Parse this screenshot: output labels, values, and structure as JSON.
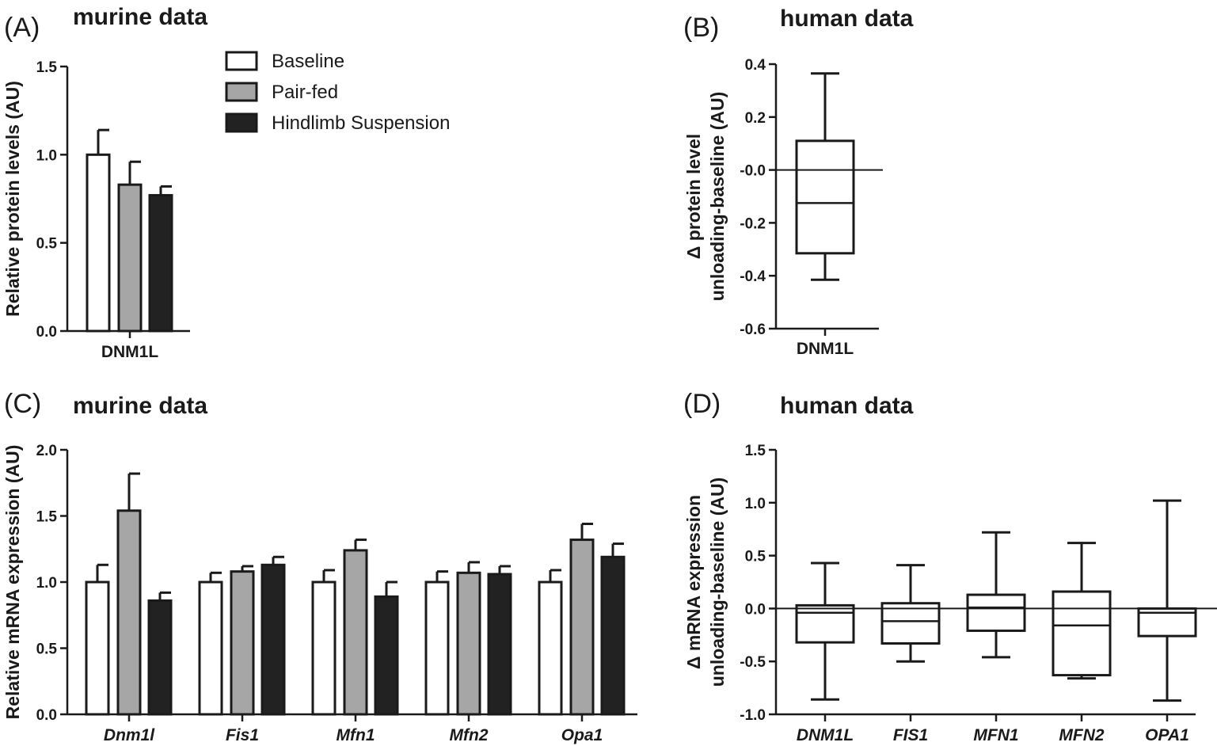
{
  "panels": {
    "A": {
      "letter": "(A)",
      "title": "murine data"
    },
    "B": {
      "letter": "(B)",
      "title": "human data"
    },
    "C": {
      "letter": "(C)",
      "title": "murine data"
    },
    "D": {
      "letter": "(D)",
      "title": "human data"
    }
  },
  "legend": {
    "items": [
      {
        "label": "Baseline",
        "color": "#ffffff"
      },
      {
        "label": "Pair-fed",
        "color": "#a6a6a6"
      },
      {
        "label": "Hindlimb Suspension",
        "color": "#222222"
      }
    ]
  },
  "chart_data": [
    {
      "panel": "A",
      "type": "bar",
      "ylabel": "Relative protein levels (AU)",
      "xlabel": "",
      "ylim": [
        0,
        1.5
      ],
      "yticks": [
        "0.0",
        "0.5",
        "1.0",
        "1.5"
      ],
      "categories": [
        "DNM1L"
      ],
      "category_italic": false,
      "series": [
        {
          "name": "Baseline",
          "values": [
            1.0
          ],
          "errors": [
            0.14
          ],
          "color": "#ffffff"
        },
        {
          "name": "Pair-fed",
          "values": [
            0.83
          ],
          "errors": [
            0.13
          ],
          "color": "#a6a6a6"
        },
        {
          "name": "Hindlimb Suspension",
          "values": [
            0.77
          ],
          "errors": [
            0.05
          ],
          "color": "#222222"
        }
      ],
      "grid": false
    },
    {
      "panel": "B",
      "type": "box",
      "ylabel": "Δ protein level unloading-baseline (AU)",
      "ylabel_lines": [
        "Δ protein level",
        "unloading-baseline (AU)"
      ],
      "xlabel": "",
      "ylim": [
        -0.6,
        0.4
      ],
      "yticks": [
        "-0.6",
        "-0.4",
        "-0.2",
        "-0.0",
        "0.2",
        "0.4"
      ],
      "categories": [
        "DNM1L"
      ],
      "category_italic": false,
      "boxes": [
        {
          "min": -0.415,
          "q1": -0.315,
          "median": -0.125,
          "q3": 0.11,
          "max": 0.365
        }
      ],
      "zero_line": true,
      "grid": false
    },
    {
      "panel": "C",
      "type": "bar",
      "ylabel": "Relative mRNA expression (AU)",
      "xlabel": "",
      "ylim": [
        0,
        2.0
      ],
      "yticks": [
        "0.0",
        "0.5",
        "1.0",
        "1.5",
        "2.0"
      ],
      "categories": [
        "Dnm1l",
        "Fis1",
        "Mfn1",
        "Mfn2",
        "Opa1"
      ],
      "category_italic": true,
      "series": [
        {
          "name": "Baseline",
          "values": [
            1.0,
            1.0,
            1.0,
            1.0,
            1.0
          ],
          "errors": [
            0.13,
            0.07,
            0.09,
            0.08,
            0.09
          ],
          "color": "#ffffff"
        },
        {
          "name": "Pair-fed",
          "values": [
            1.54,
            1.08,
            1.24,
            1.07,
            1.32
          ],
          "errors": [
            0.28,
            0.04,
            0.08,
            0.08,
            0.12
          ],
          "color": "#a6a6a6"
        },
        {
          "name": "Hindlimb Suspension",
          "values": [
            0.86,
            1.13,
            0.89,
            1.06,
            1.19
          ],
          "errors": [
            0.06,
            0.06,
            0.11,
            0.06,
            0.1
          ],
          "color": "#222222"
        }
      ],
      "grid": false
    },
    {
      "panel": "D",
      "type": "box",
      "ylabel": "Δ mRNA expression unloading-baseline (AU)",
      "ylabel_lines": [
        "Δ mRNA expression",
        "unloading-baseline (AU)"
      ],
      "xlabel": "",
      "ylim": [
        -1.0,
        1.5
      ],
      "yticks": [
        "-1.0",
        "-0.5",
        "0.0",
        "0.5",
        "1.0",
        "1.5"
      ],
      "categories": [
        "DNM1L",
        "FIS1",
        "MFN1",
        "MFN2",
        "OPA1"
      ],
      "category_italic": true,
      "boxes": [
        {
          "min": -0.86,
          "q1": -0.32,
          "median": -0.04,
          "q3": 0.03,
          "max": 0.43
        },
        {
          "min": -0.5,
          "q1": -0.33,
          "median": -0.12,
          "q3": 0.05,
          "max": 0.41
        },
        {
          "min": -0.46,
          "q1": -0.21,
          "median": 0.01,
          "q3": 0.13,
          "max": 0.72
        },
        {
          "min": -0.66,
          "q1": -0.63,
          "median": -0.16,
          "q3": 0.16,
          "max": 0.62
        },
        {
          "min": -0.87,
          "q1": -0.26,
          "median": -0.04,
          "q3": 0.0,
          "max": 1.02
        }
      ],
      "zero_line": true,
      "grid": false
    }
  ]
}
